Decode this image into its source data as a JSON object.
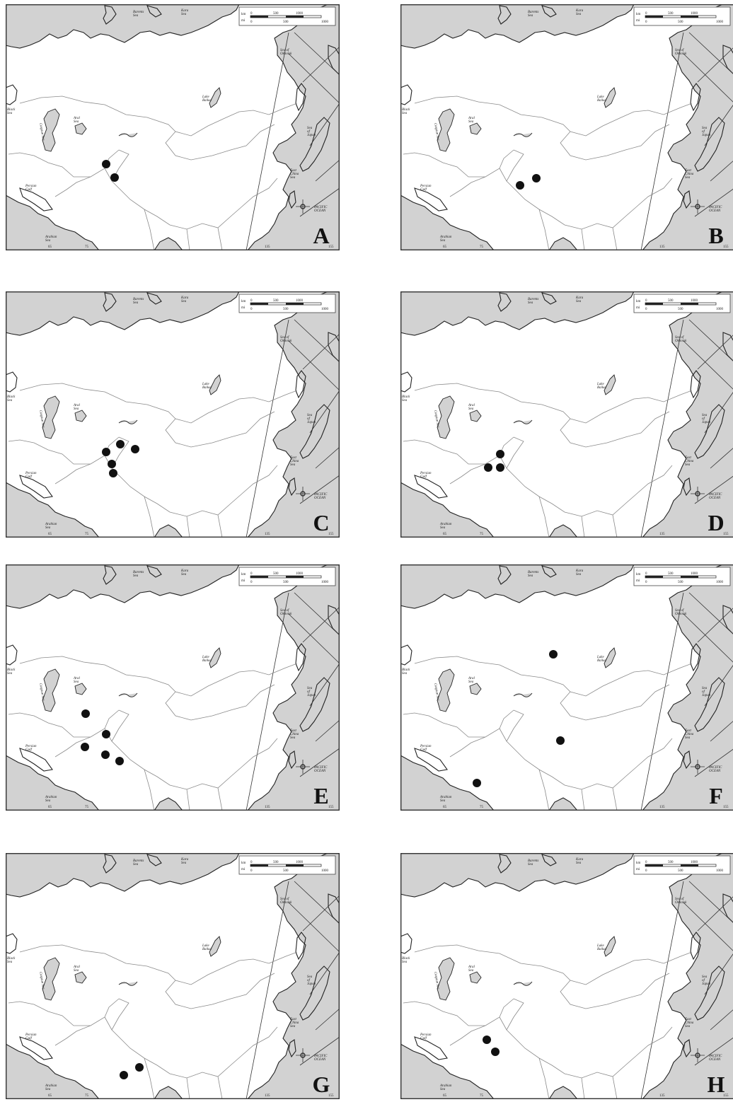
{
  "map_labels": {
    "sea_of_okhotsk": [
      "Sea of",
      "Okhotsk"
    ],
    "lake_baikal": [
      "Lake",
      "Baikal"
    ],
    "aral_sea": [
      "Aral",
      "Sea"
    ],
    "black_sea": [
      "Black",
      "Sea"
    ],
    "caspian_sea": "Caspian Sea",
    "persian_gulf": [
      "Persian",
      "Gulf"
    ],
    "sea_of_japan": [
      "Sea",
      "of",
      "Japan"
    ],
    "east_china_sea": [
      "East",
      "China",
      "Sea"
    ],
    "pacific_ocean": [
      "PACIFIC",
      "OCEAN"
    ],
    "arabian_sea": [
      "Arabian",
      "Sea"
    ],
    "barents_sea": [
      "Barents",
      "Sea"
    ],
    "kara_sea": [
      "Kara",
      "Sea"
    ],
    "lon_65": "65",
    "lon_75": "75",
    "lon_135": "135",
    "lon_155": "155",
    "scale_km": "km",
    "scale_mi": "mi",
    "scale_km_ticks": [
      "0",
      "500",
      "1000"
    ],
    "scale_mi_ticks": [
      "0",
      "500",
      "1000"
    ]
  },
  "panels": [
    {
      "letter": "A",
      "points": [
        [
          142,
          226
        ],
        [
          154,
          245
        ]
      ]
    },
    {
      "letter": "B",
      "points": [
        [
          169,
          256
        ],
        [
          192,
          246
        ]
      ]
    },
    {
      "letter": "C",
      "points": [
        [
          162,
          216
        ],
        [
          142,
          227
        ],
        [
          183,
          223
        ],
        [
          150,
          244
        ],
        [
          152,
          257
        ]
      ]
    },
    {
      "letter": "D",
      "points": [
        [
          141,
          230
        ],
        [
          124,
          249
        ],
        [
          141,
          249
        ]
      ]
    },
    {
      "letter": "E",
      "points": [
        [
          113,
          211
        ],
        [
          142,
          240
        ],
        [
          112,
          258
        ],
        [
          141,
          269
        ],
        [
          161,
          278
        ]
      ]
    },
    {
      "letter": "F",
      "points": [
        [
          216,
          127
        ],
        [
          226,
          249
        ],
        [
          108,
          309
        ]
      ]
    },
    {
      "letter": "G",
      "points": [
        [
          189,
          303
        ],
        [
          167,
          314
        ]
      ]
    },
    {
      "letter": "H",
      "points": [
        [
          122,
          264
        ],
        [
          134,
          281
        ]
      ]
    }
  ],
  "colors": {
    "sea": "#d2d2d2",
    "land": "#ffffff",
    "point": "#111111"
  }
}
